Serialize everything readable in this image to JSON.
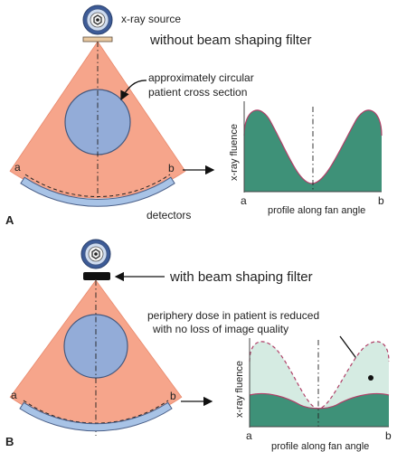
{
  "labels": {
    "source": "x-ray source",
    "without_filter": "without beam shaping filter",
    "circ_line1": "approximately circular",
    "circ_line2": "patient cross section",
    "detectors": "detectors",
    "a": "a",
    "b": "b",
    "panel_a": "A",
    "panel_b": "B",
    "fluence": "x-ray fluence",
    "profile": "profile along fan angle",
    "with_filter": "with beam shaping filter",
    "note_line1": "periphery dose in patient is reduced",
    "note_line2": "with no loss of image quality"
  },
  "colors": {
    "beam": "#f6a58b",
    "beam_edge": "#e8896d",
    "patient": "#93acd8",
    "patient_edge": "#44597f",
    "detector": "#a8c3e6",
    "detector_edge": "#4a5f88",
    "fluence_fill": "#3e9178",
    "fluence_line": "#b04068",
    "ghost_fill": "#d5ebe2",
    "source_outer": "#3d5b97",
    "source_mid": "#cfdcf0",
    "filter": "#111111",
    "axis": "#444444"
  }
}
